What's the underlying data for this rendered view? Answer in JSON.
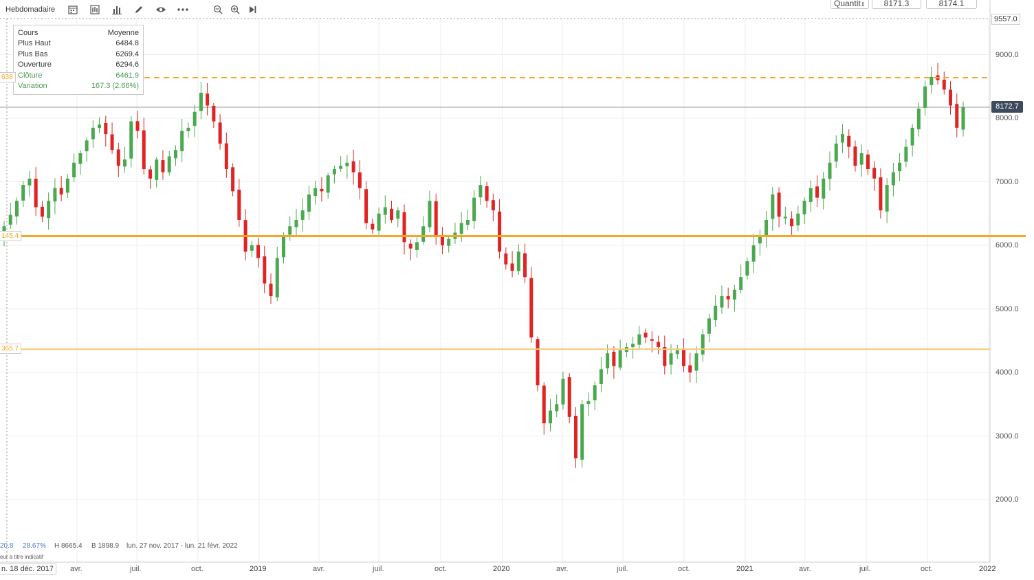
{
  "toolbar": {
    "period": "Hebdomadaire",
    "quantity_label": "Quantit",
    "bid": "8171.3",
    "ask": "8174.1"
  },
  "infobox": {
    "header_left": "Cours",
    "header_right": "Moyenne",
    "rows": [
      {
        "label": "Plus Haut",
        "value": "6484.8"
      },
      {
        "label": "Plus Bas",
        "value": "6269.4"
      },
      {
        "label": "Ouverture",
        "value": "6294.6"
      },
      {
        "label": "Clôture",
        "value": "6461.9"
      },
      {
        "label": "Variation",
        "value": "167.3 (2.66%)"
      }
    ]
  },
  "hlines": {
    "top": "638",
    "mid": "145.4",
    "low": "365.7"
  },
  "current_price": "8172.7",
  "y_axis": {
    "top_label": "9557.0",
    "ticks": [
      "9000.0",
      "8000.0",
      "7000.0",
      "6000.0",
      "5000.0",
      "4000.0",
      "3000.0",
      "2000.0"
    ]
  },
  "x_axis": {
    "start": "n. 18 déc. 2017",
    "ticks": [
      "avr.",
      "juil.",
      "oct.",
      "2019",
      "avr.",
      "juil.",
      "oct.",
      "2020",
      "avr.",
      "juil.",
      "oct.",
      "2021",
      "avr.",
      "juil.",
      "oct.",
      "2022"
    ]
  },
  "stats": {
    "a": "20.8",
    "b": "28.67%",
    "high": "H 8665.4",
    "low": "B 1898.9",
    "range": "lun. 27 nov. 2017 - lun. 21 févr. 2022",
    "note": "eur à titre indicatif"
  },
  "colors": {
    "up": "#4aa84f",
    "down": "#e02424",
    "level": "#f5a623"
  },
  "chart_data": {
    "type": "candlestick",
    "period": "weekly",
    "y_range": [
      1898.9,
      8665.4
    ],
    "levels": [
      8638,
      6145.4,
      4365.7
    ],
    "last": 8172.7,
    "closes": [
      6300,
      6480,
      6700,
      6950,
      7050,
      6600,
      6450,
      6700,
      6900,
      6800,
      7050,
      7300,
      7450,
      7650,
      7850,
      7900,
      7750,
      7500,
      7250,
      7350,
      7950,
      7800,
      7200,
      7050,
      7350,
      7150,
      7400,
      7500,
      7800,
      7850,
      8100,
      8400,
      8200,
      7950,
      7600,
      7200,
      6850,
      6400,
      5900,
      6000,
      5800,
      5400,
      5200,
      5800,
      6150,
      6300,
      6400,
      6550,
      6800,
      6900,
      6850,
      7100,
      7200,
      7250,
      7300,
      7150,
      6900,
      6350,
      6250,
      6500,
      6600,
      6400,
      6550,
      6050,
      5950,
      6050,
      6300,
      6700,
      6150,
      6000,
      6100,
      6200,
      6350,
      6400,
      6750,
      6950,
      6700,
      6550,
      5900,
      5700,
      5600,
      5900,
      5500,
      4550,
      3800,
      3200,
      3400,
      3500,
      3900,
      3300,
      2650,
      3500,
      3550,
      3800,
      4050,
      4300,
      4100,
      4350,
      4400,
      4450,
      4600,
      4550,
      4500,
      4400,
      4100,
      4300,
      4350,
      4100,
      4000,
      4300,
      4600,
      4850,
      5050,
      5200,
      5150,
      5300,
      5500,
      5750,
      6000,
      6150,
      6400,
      6800,
      6450,
      6450,
      6300,
      6500,
      6700,
      6900,
      6750,
      7050,
      7300,
      7600,
      7750,
      7550,
      7250,
      7450,
      7200,
      7050,
      6550,
      6950,
      7150,
      7300,
      7550,
      7850,
      8150,
      8500,
      8650,
      8600,
      8450,
      8200,
      7850,
      8172.7
    ]
  }
}
